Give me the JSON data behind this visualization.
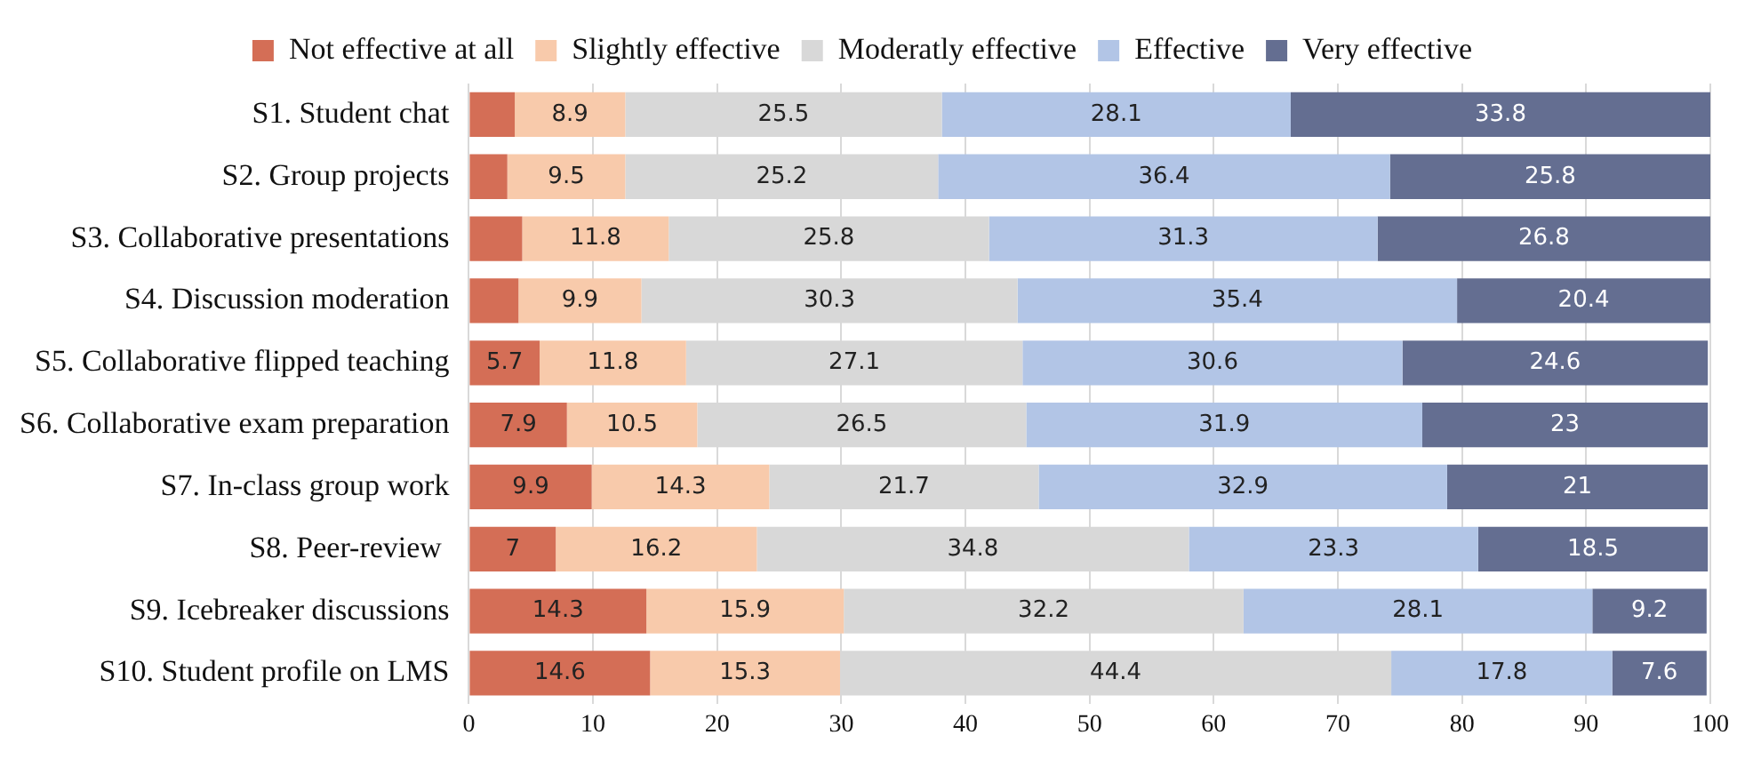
{
  "chart_data": {
    "type": "bar",
    "orientation": "horizontal",
    "stacked": true,
    "categories": [
      "S1. Student chat",
      "S2. Group projects",
      "S3. Collaborative presentations",
      "S4. Discussion moderation",
      "S5. Collaborative flipped teaching",
      "S6. Collaborative exam preparation",
      "S7. In-class group work",
      "S8. Peer-review ",
      "S9. Icebreaker discussions",
      "S10. Student profile on LMS"
    ],
    "series": [
      {
        "name": "Not effective at all",
        "color": "#d46e56",
        "values": [
          3.7,
          3.1,
          4.3,
          4.0,
          5.7,
          7.9,
          9.9,
          7,
          14.3,
          14.6
        ],
        "value_labels": [
          null,
          null,
          null,
          null,
          "5.7",
          "7.9",
          "9.9",
          "7",
          "14.3",
          "14.6"
        ]
      },
      {
        "name": "Slightly effective",
        "color": "#f8caab",
        "values": [
          8.9,
          9.5,
          11.8,
          9.9,
          11.8,
          10.5,
          14.3,
          16.2,
          15.9,
          15.3
        ],
        "value_labels": [
          "8.9",
          "9.5",
          "11.8",
          "9.9",
          "11.8",
          "10.5",
          "14.3",
          "16.2",
          "15.9",
          "15.3"
        ]
      },
      {
        "name": "Moderatly effective",
        "color": "#d8d8d8",
        "values": [
          25.5,
          25.2,
          25.8,
          30.3,
          27.1,
          26.5,
          21.7,
          34.8,
          32.2,
          44.4
        ],
        "value_labels": [
          "25.5",
          "25.2",
          "25.8",
          "30.3",
          "27.1",
          "26.5",
          "21.7",
          "34.8",
          "32.2",
          "44.4"
        ]
      },
      {
        "name": "Effective",
        "color": "#b2c5e6",
        "values": [
          28.1,
          36.4,
          31.3,
          35.4,
          30.6,
          31.9,
          32.9,
          23.3,
          28.1,
          17.8
        ],
        "value_labels": [
          "28.1",
          "36.4",
          "31.3",
          "35.4",
          "30.6",
          "31.9",
          "32.9",
          "23.3",
          "28.1",
          "17.8"
        ]
      },
      {
        "name": "Very effective",
        "color": "#646e91",
        "values": [
          33.8,
          25.8,
          26.8,
          20.4,
          24.6,
          23,
          21,
          18.5,
          9.2,
          7.6
        ],
        "value_labels": [
          "33.8",
          "25.8",
          "26.8",
          "20.4",
          "24.6",
          "23",
          "21",
          "18.5",
          "9.2",
          "7.6"
        ]
      }
    ],
    "xlim": [
      0,
      100
    ],
    "xticks": [
      0,
      10,
      20,
      30,
      40,
      50,
      60,
      70,
      80,
      90,
      100
    ],
    "grid": "x",
    "legend": "top"
  }
}
